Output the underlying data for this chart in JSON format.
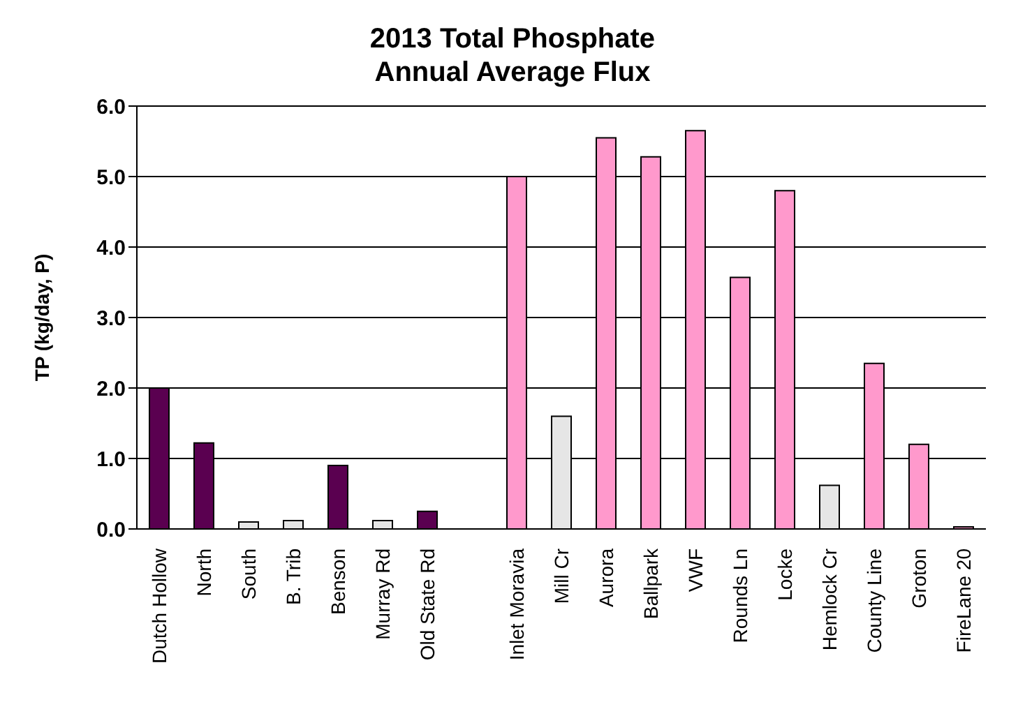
{
  "chart_data": {
    "type": "bar",
    "title": "2013 Total Phosphate\nAnnual Average Flux",
    "ylabel": "TP (kg/day, P)",
    "categories": [
      "Dutch Hollow",
      "North",
      "South",
      "B. Trib",
      "Benson",
      "Murray Rd",
      "Old State Rd",
      null,
      "Inlet Moravia",
      "Mill Cr",
      "Aurora",
      "Ballpark",
      "VWF",
      "Rounds Ln",
      "Locke",
      "Hemlock Cr",
      "County Line",
      "Groton",
      "FireLane 20"
    ],
    "values": [
      2.0,
      1.22,
      0.1,
      0.12,
      0.9,
      0.12,
      0.25,
      null,
      5.0,
      1.6,
      5.55,
      5.28,
      5.65,
      3.57,
      4.8,
      0.62,
      2.35,
      1.2,
      0.03
    ],
    "colors": [
      "#5a0050",
      "#5a0050",
      "#e6e6e6",
      "#e6e6e6",
      "#5a0050",
      "#e6e6e6",
      "#5a0050",
      "#5a0050",
      "#ff99cc",
      "#e6e6e6",
      "#ff99cc",
      "#ff99cc",
      "#ff99cc",
      "#ff99cc",
      "#ff99cc",
      "#e6e6e6",
      "#ff99cc",
      "#ff99cc",
      "#ff99cc"
    ],
    "ylim": [
      0,
      6
    ],
    "yticks": [
      {
        "value": 0,
        "label": "0.0"
      },
      {
        "value": 1,
        "label": "1.0"
      },
      {
        "value": 2,
        "label": "2.0"
      },
      {
        "value": 3,
        "label": "3.0"
      },
      {
        "value": 4,
        "label": "4.0"
      },
      {
        "value": 5,
        "label": "5.0"
      },
      {
        "value": 6,
        "label": "6.0"
      }
    ],
    "grid": "y"
  }
}
